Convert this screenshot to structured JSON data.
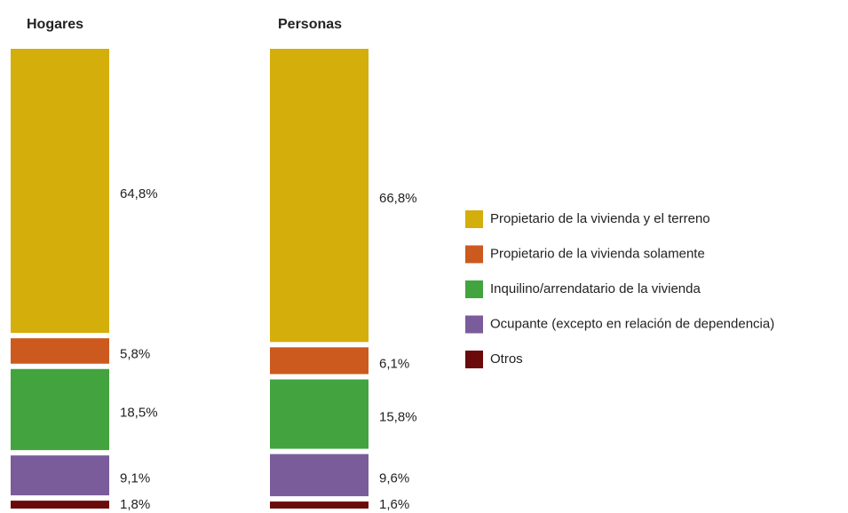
{
  "chart_data": {
    "type": "bar",
    "stacked": true,
    "categories": [
      "Hogares",
      "Personas"
    ],
    "series": [
      {
        "name": "Propietario de la vivienda y el terreno",
        "color": "#d4ae0b",
        "values": [
          64.8,
          66.8
        ],
        "value_labels": [
          "64,8%",
          "66,8%"
        ]
      },
      {
        "name": "Propietario de la vivienda solamente",
        "color": "#cc5a1e",
        "values": [
          5.8,
          6.1
        ],
        "value_labels": [
          "5,8%",
          "6,1%"
        ]
      },
      {
        "name": "Inquilino/arrendatario de la vivienda",
        "color": "#43a33f",
        "values": [
          18.5,
          15.8
        ],
        "value_labels": [
          "18,5%",
          "15,8%"
        ]
      },
      {
        "name": "Ocupante (excepto en relación de dependencia)",
        "color": "#7a5c9b",
        "values": [
          9.1,
          9.6
        ],
        "value_labels": [
          "9,1%",
          "9,6%"
        ]
      },
      {
        "name": "Otros",
        "color": "#6b0a0a",
        "values": [
          1.8,
          1.6
        ],
        "value_labels": [
          "1,8%",
          "1,6%"
        ]
      }
    ]
  }
}
